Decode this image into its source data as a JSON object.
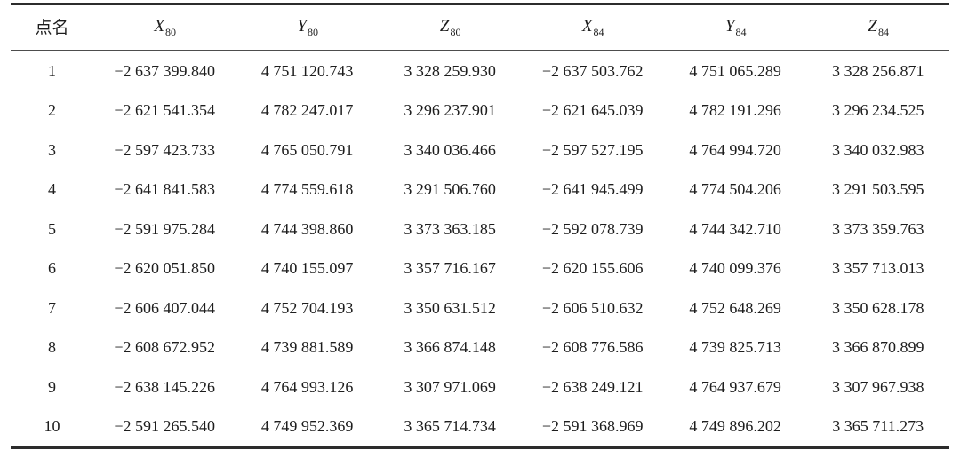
{
  "table": {
    "headers": [
      {
        "base": "点名",
        "sub": ""
      },
      {
        "base": "X",
        "sub": "80"
      },
      {
        "base": "Y",
        "sub": "80"
      },
      {
        "base": "Z",
        "sub": "80"
      },
      {
        "base": "X",
        "sub": "84"
      },
      {
        "base": "Y",
        "sub": "84"
      },
      {
        "base": "Z",
        "sub": "84"
      }
    ],
    "rows": [
      [
        "1",
        "−2 637 399.840",
        "4 751 120.743",
        "3 328 259.930",
        "−2 637 503.762",
        "4 751 065.289",
        "3 328 256.871"
      ],
      [
        "2",
        "−2 621 541.354",
        "4 782 247.017",
        "3 296 237.901",
        "−2 621 645.039",
        "4 782 191.296",
        "3 296 234.525"
      ],
      [
        "3",
        "−2 597 423.733",
        "4 765 050.791",
        "3 340 036.466",
        "−2 597 527.195",
        "4 764 994.720",
        "3 340 032.983"
      ],
      [
        "4",
        "−2 641 841.583",
        "4 774 559.618",
        "3 291 506.760",
        "−2 641 945.499",
        "4 774 504.206",
        "3 291 503.595"
      ],
      [
        "5",
        "−2 591 975.284",
        "4 744 398.860",
        "3 373 363.185",
        "−2 592 078.739",
        "4 744 342.710",
        "3 373 359.763"
      ],
      [
        "6",
        "−2 620 051.850",
        "4 740 155.097",
        "3 357 716.167",
        "−2 620 155.606",
        "4 740 099.376",
        "3 357 713.013"
      ],
      [
        "7",
        "−2 606 407.044",
        "4 752 704.193",
        "3 350 631.512",
        "−2 606 510.632",
        "4 752 648.269",
        "3 350 628.178"
      ],
      [
        "8",
        "−2 608 672.952",
        "4 739 881.589",
        "3 366 874.148",
        "−2 608 776.586",
        "4 739 825.713",
        "3 366 870.899"
      ],
      [
        "9",
        "−2 638 145.226",
        "4 764 993.126",
        "3 307 971.069",
        "−2 638 249.121",
        "4 764 937.679",
        "3 307 967.938"
      ],
      [
        "10",
        "−2 591 265.540",
        "4 749 952.369",
        "3 365 714.734",
        "−2 591 368.969",
        "4 749 896.202",
        "3 365 711.273"
      ]
    ]
  }
}
